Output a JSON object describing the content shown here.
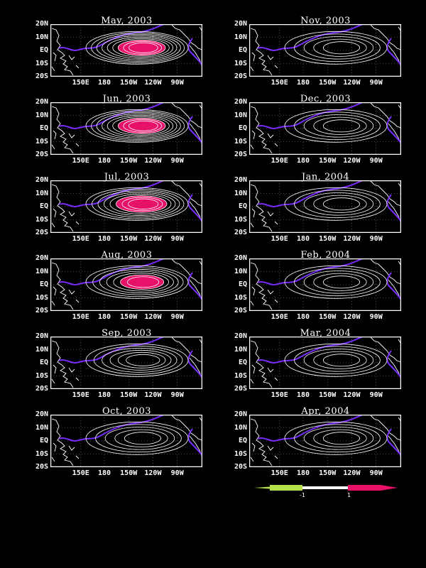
{
  "colors": {
    "background": "#000000",
    "contour": "#ffffff",
    "zero_contour": "#7a2cff",
    "positive_fill": "#e8116a",
    "negative_fill": "#b5e04a",
    "coastline": "#ffffff"
  },
  "axes": {
    "y_ticks": [
      "20N",
      "10N",
      "EQ",
      "10S",
      "20S"
    ],
    "x_ticks": [
      "150E",
      "180",
      "150W",
      "120W",
      "90W"
    ]
  },
  "panels": [
    {
      "title": "May, 2003",
      "peak": 1.0,
      "shaded": true
    },
    {
      "title": "Nov, 2003",
      "peak": 0.55,
      "shaded": false
    },
    {
      "title": "Jun, 2003",
      "peak": 0.95,
      "shaded": true
    },
    {
      "title": "Dec, 2003",
      "peak": 0.5,
      "shaded": false
    },
    {
      "title": "Jul, 2003",
      "peak": 0.85,
      "shaded": true
    },
    {
      "title": "Jan, 2004",
      "peak": 0.5,
      "shaded": false
    },
    {
      "title": "Aug, 2003",
      "peak": 0.75,
      "shaded": true
    },
    {
      "title": "Feb, 2004",
      "peak": 0.5,
      "shaded": false
    },
    {
      "title": "Sep, 2003",
      "peak": 0.65,
      "shaded": false
    },
    {
      "title": "Mar, 2004",
      "peak": 0.5,
      "shaded": false
    },
    {
      "title": "Oct, 2003",
      "peak": 0.6,
      "shaded": false
    },
    {
      "title": "Apr, 2004",
      "peak": 0.5,
      "shaded": false
    }
  ],
  "colorbar": {
    "labels": [
      "-1",
      "1"
    ]
  }
}
